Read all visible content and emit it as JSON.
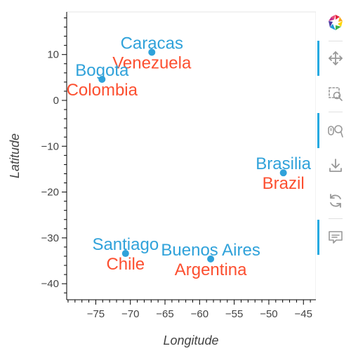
{
  "chart_data": {
    "type": "scatter",
    "title": "",
    "xlabel": "Longitude",
    "ylabel": "Latitude",
    "xlim": [
      -79.2,
      -43.2
    ],
    "ylim": [
      -43.5,
      19.3
    ],
    "x_ticks": [
      -75,
      -70,
      -65,
      -60,
      -55,
      -50,
      -45
    ],
    "y_ticks": [
      -40,
      -30,
      -20,
      -10,
      0,
      10
    ],
    "grid": false,
    "point_color": "#30a2da",
    "city_color": "#30a2da",
    "country_color": "#fc4f30",
    "points": [
      {
        "city": "Caracas",
        "country": "Venezuela",
        "lon": -66.9,
        "lat": 10.5
      },
      {
        "city": "Bogota",
        "country": "Colombia",
        "lon": -74.1,
        "lat": 4.6
      },
      {
        "city": "Brasilia",
        "country": "Brazil",
        "lon": -47.9,
        "lat": -15.8
      },
      {
        "city": "Santiago",
        "country": "Chile",
        "lon": -70.7,
        "lat": -33.4
      },
      {
        "city": "Buenos Aires",
        "country": "Argentina",
        "lon": -58.4,
        "lat": -34.6
      }
    ]
  },
  "toolbar": {
    "tools": [
      {
        "name": "bokeh-logo-icon",
        "interactable": true
      },
      {
        "name": "pan-icon",
        "interactable": true,
        "active": true
      },
      {
        "name": "box-zoom-icon",
        "interactable": true
      },
      {
        "name": "wheel-zoom-icon",
        "interactable": true,
        "active": true
      },
      {
        "name": "save-icon",
        "interactable": true
      },
      {
        "name": "reset-icon",
        "interactable": true
      },
      {
        "name": "hover-icon",
        "interactable": true,
        "active": true
      }
    ]
  }
}
